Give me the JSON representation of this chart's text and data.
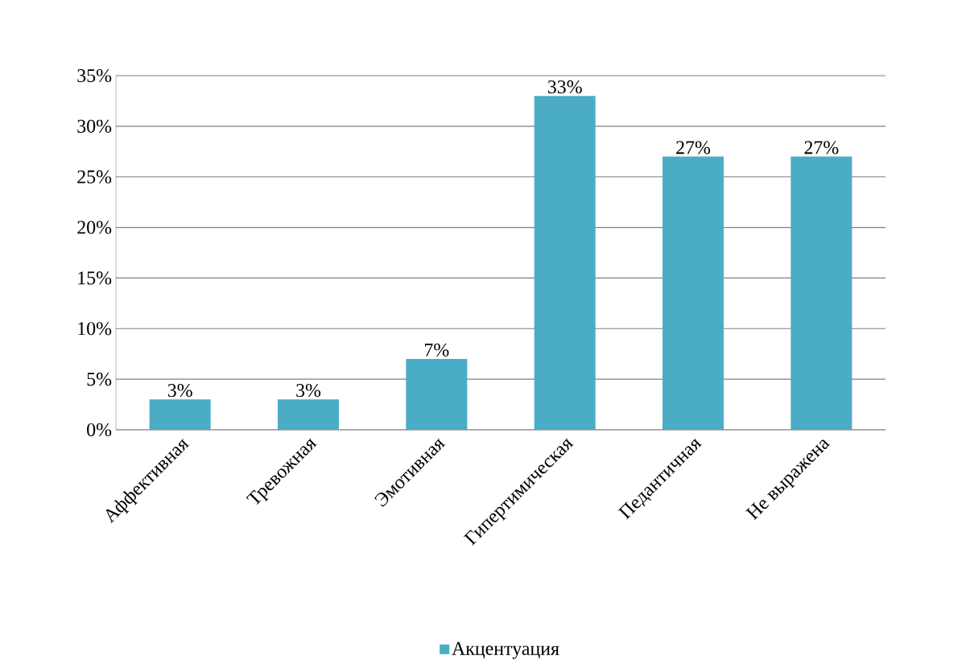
{
  "chart_data": {
    "type": "bar",
    "categories": [
      "Аффективная",
      "Тревожная",
      "Эмотивная",
      "Гипертимическая",
      "Педантичная",
      "Не выражена"
    ],
    "series": [
      {
        "name": "Акцентуация",
        "color": "#4bacc6",
        "values": [
          3,
          3,
          7,
          33,
          27,
          27
        ],
        "value_labels": [
          "3%",
          "3%",
          "7%",
          "33%",
          "27%",
          "27%"
        ]
      }
    ],
    "ylim": [
      0,
      35
    ],
    "yticks": [
      {
        "value": 0,
        "label": "0%"
      },
      {
        "value": 5,
        "label": "5%"
      },
      {
        "value": 10,
        "label": "10%"
      },
      {
        "value": 15,
        "label": "15%"
      },
      {
        "value": 20,
        "label": "20%"
      },
      {
        "value": 25,
        "label": "25%"
      },
      {
        "value": 30,
        "label": "30%"
      },
      {
        "value": 35,
        "label": "35%"
      }
    ],
    "grid": "y",
    "legend": "bottom"
  }
}
